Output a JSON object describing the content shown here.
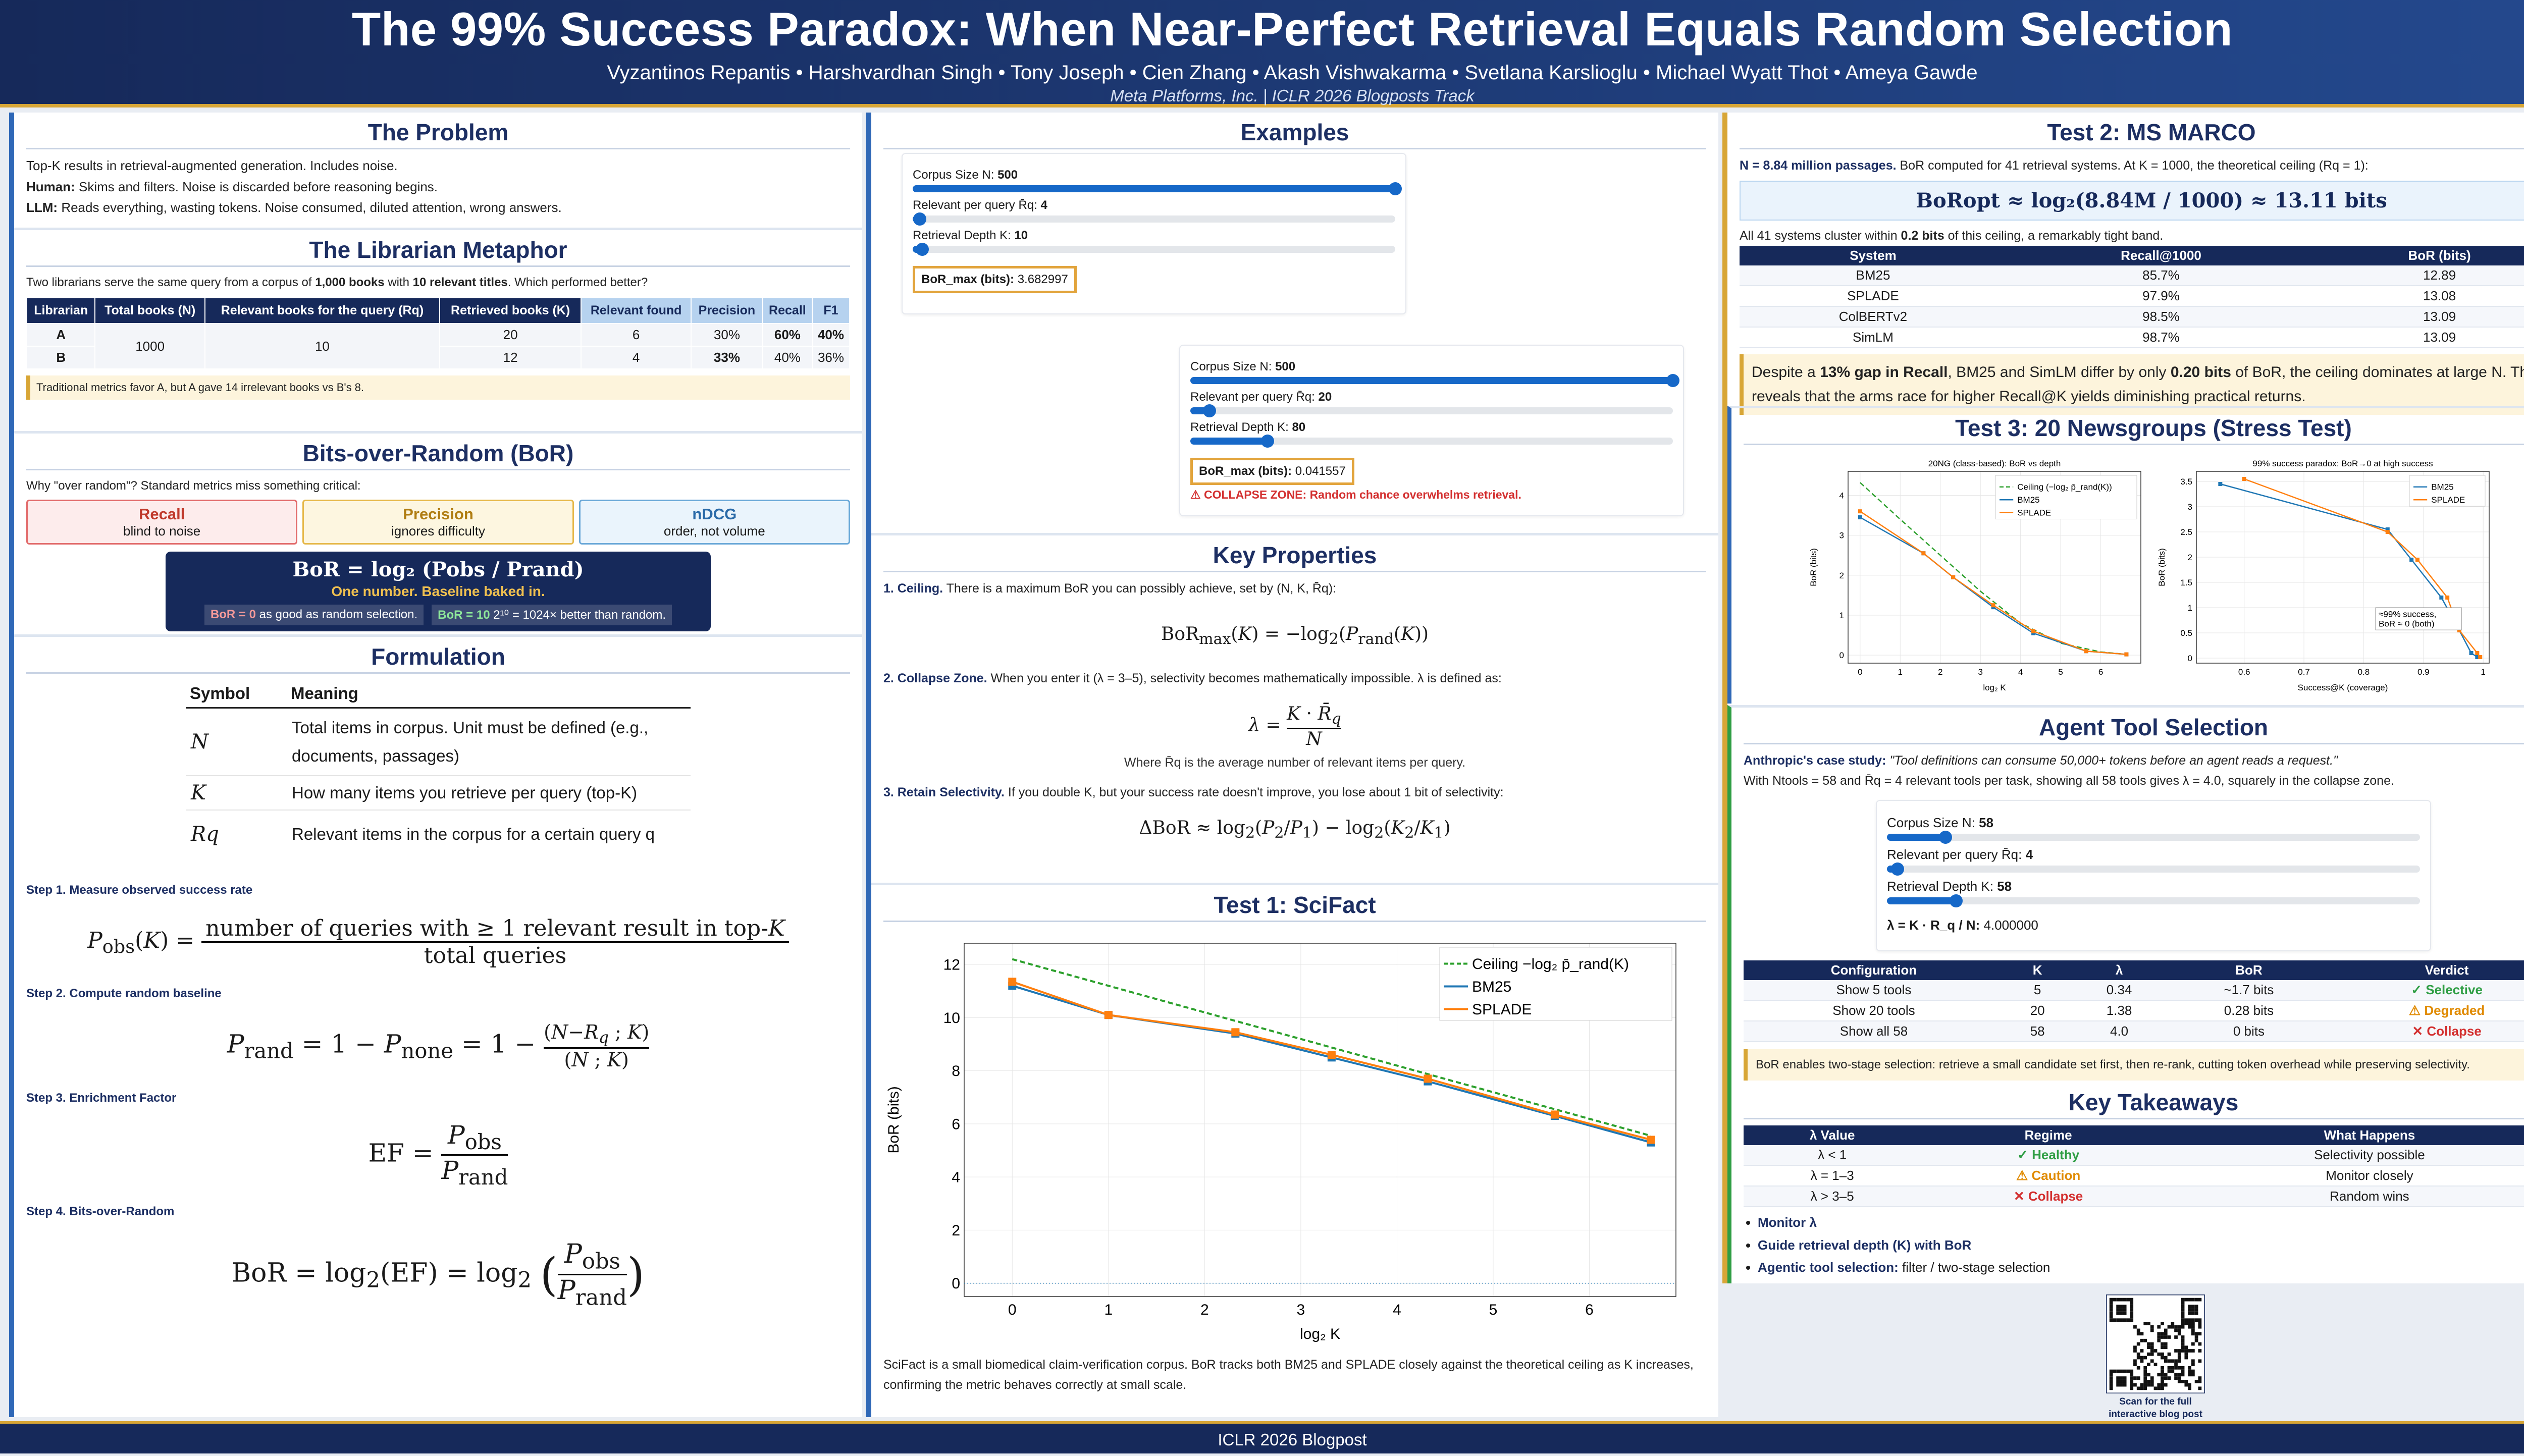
{
  "header": {
    "title": "The 99% Success Paradox: When Near-Perfect Retrieval Equals Random Selection",
    "authors": "Vyzantinos Repantis  •  Harshvardhan Singh  •  Tony Joseph  •  Cien Zhang  •  Akash Vishwakarma  •  Svetlana Karslioglu  •  Michael Wyatt Thot  •  Ameya Gawde",
    "affiliation": "Meta Platforms, Inc.  |  ICLR 2026 Blogposts Track"
  },
  "footer": "ICLR 2026 Blogpost",
  "problem": {
    "title": "The Problem",
    "l1": "Top-K results in retrieval-augmented generation. Includes noise.",
    "l2k": "Human:",
    "l2": " Skims and filters. Noise is discarded before reasoning begins.",
    "l3k": "LLM:",
    "l3": " Reads everything, wasting tokens. Noise consumed, diluted attention, wrong answers."
  },
  "librarian": {
    "title": "The Librarian Metaphor",
    "intro1": "Two librarians serve the same query from a corpus of ",
    "intro_b1": "1,000 books",
    "intro2": " with ",
    "intro_b2": "10 relevant titles",
    "intro3": ". Which performed better?",
    "headers": [
      "Librarian",
      "Total books (N)",
      "Relevant books for the query (Rq)",
      "Retrieved books (K)",
      "Relevant found",
      "Precision",
      "Recall",
      "F1"
    ],
    "rows": [
      [
        "A",
        "1000",
        "10",
        "20",
        "6",
        "30%",
        "60%",
        "40%"
      ],
      [
        "B",
        "",
        "",
        "12",
        "4",
        "33%",
        "40%",
        "36%"
      ]
    ],
    "note": "Traditional metrics favor A, but A gave 14 irrelevant books vs B's 8."
  },
  "bor": {
    "title": "Bits-over-Random (BoR)",
    "q": "Why \"over random\"? Standard metrics miss something critical:",
    "chips": [
      {
        "t": "Recall",
        "s": "blind to noise"
      },
      {
        "t": "Precision",
        "s": "ignores difficulty"
      },
      {
        "t": "nDCG",
        "s": "order, not volume"
      }
    ],
    "formula": "BoR = log₂ (Pobs / Prand)",
    "tag": "One number. Baseline baked in.",
    "c1k": "BoR = 0",
    "c1": " as good as random selection.",
    "c2k": "BoR = 10",
    "c2": " 2¹⁰ = 1024× better than random."
  },
  "formulation": {
    "title": "Formulation",
    "sym_h": "Symbol",
    "mean_h": "Meaning",
    "rows": [
      [
        "N",
        "Total items in corpus. Unit must be defined (e.g., documents, passages)"
      ],
      [
        "K",
        "How many items you retrieve per query (top-K)"
      ],
      [
        "Rq",
        "Relevant items in the corpus for a certain query q"
      ]
    ],
    "s1": "Step 1. Measure observed success rate",
    "s2": "Step 2. Compute random baseline",
    "s3": "Step 3. Enrichment Factor",
    "s4": "Step 4. Bits-over-Random"
  },
  "examples": {
    "title": "Examples",
    "w1": {
      "n_label": "Corpus Size N:",
      "n": "500",
      "r_label": "Relevant per query R̄q:",
      "r": "4",
      "k_label": "Retrieval Depth K:",
      "k": "10",
      "res_label": "BoR_max (bits):",
      "res": "3.682997"
    },
    "w2": {
      "n_label": "Corpus Size N:",
      "n": "500",
      "r_label": "Relevant per query R̄q:",
      "r": "20",
      "k_label": "Retrieval Depth K:",
      "k": "80",
      "res_label": "BoR_max (bits):",
      "res": "0.041557",
      "warn": "⚠ COLLAPSE ZONE: Random chance overwhelms retrieval."
    }
  },
  "keyprops": {
    "title": "Key Properties",
    "p1k": "1. Ceiling.",
    "p1": " There is a maximum BoR you can possibly achieve, set by (N, K, R̄q):",
    "p2k": "2. Collapse Zone.",
    "p2": " When you enter it (λ = 3–5), selectivity becomes mathematically impossible. λ is defined as:",
    "p2w": "Where R̄q is the average number of relevant items per query.",
    "p3k": "3. Retain Selectivity.",
    "p3": " If you double K, but your success rate doesn't improve, you lose about 1 bit of selectivity:"
  },
  "scifact": {
    "title": "Test 1: SciFact",
    "caption": "SciFact is a small biomedical claim-verification corpus. BoR tracks both BM25 and SPLADE closely against the theoretical ceiling as K increases, confirming the metric behaves correctly at small scale."
  },
  "chart_data": [
    {
      "type": "line",
      "xlabel": "log₂ K",
      "ylabel": "BoR (bits)",
      "xlim": [
        -0.5,
        6.9
      ],
      "ylim": [
        -0.5,
        12.8
      ],
      "xticks": [
        0,
        1,
        2,
        3,
        4,
        5,
        6
      ],
      "yticks": [
        0,
        2,
        4,
        6,
        8,
        10,
        12
      ],
      "grid": true,
      "legend": "top-right",
      "series": [
        {
          "name": "Ceiling −log₂ p̄_rand(K)",
          "color": "#2ca02c",
          "dash": true,
          "x": [
            0,
            6.64
          ],
          "y": [
            12.2,
            5.55
          ]
        },
        {
          "name": "BM25",
          "color": "#1f77b4",
          "x": [
            0,
            1,
            2.32,
            3.32,
            4.32,
            5.64,
            6.64
          ],
          "y": [
            11.2,
            10.1,
            9.4,
            8.5,
            7.6,
            6.3,
            5.3
          ]
        },
        {
          "name": "SPLADE",
          "color": "#ff7f0e",
          "x": [
            0,
            1,
            2.32,
            3.32,
            4.32,
            5.64,
            6.64
          ],
          "y": [
            11.35,
            10.1,
            9.45,
            8.6,
            7.7,
            6.35,
            5.4
          ]
        }
      ]
    },
    {
      "type": "line",
      "title": "20NG (class-based): BoR vs depth",
      "xlabel": "log₂ K",
      "ylabel": "BoR (bits)",
      "xlim": [
        -0.3,
        7
      ],
      "ylim": [
        -0.2,
        4.6
      ],
      "xticks": [
        0,
        1,
        2,
        3,
        4,
        5,
        6
      ],
      "yticks": [
        0,
        1,
        2,
        3,
        4
      ],
      "grid": true,
      "legend": "top-right",
      "series": [
        {
          "name": "Ceiling (−log₂ p̄_rand(K))",
          "color": "#2ca02c",
          "dash": true,
          "x": [
            0,
            1,
            2,
            3,
            4,
            5,
            6,
            6.64
          ],
          "y": [
            4.32,
            3.4,
            2.5,
            1.6,
            0.8,
            0.3,
            0.08,
            0.02
          ]
        },
        {
          "name": "BM25",
          "color": "#1f77b4",
          "x": [
            0,
            1.58,
            2.32,
            3.32,
            4.32,
            5.64,
            6.64
          ],
          "y": [
            3.45,
            2.55,
            1.95,
            1.2,
            0.55,
            0.1,
            0.02
          ]
        },
        {
          "name": "SPLADE",
          "color": "#ff7f0e",
          "x": [
            0,
            1.58,
            2.32,
            3.32,
            4.32,
            5.64,
            6.64
          ],
          "y": [
            3.6,
            2.55,
            1.95,
            1.25,
            0.6,
            0.1,
            0.02
          ]
        }
      ]
    },
    {
      "type": "line",
      "title": "99% success paradox: BoR→0 at high success",
      "xlabel": "Success@K (coverage)",
      "ylabel": "BoR (bits)",
      "xlim": [
        0.52,
        1.01
      ],
      "ylim": [
        -0.1,
        3.7
      ],
      "xticks": [
        0.6,
        0.7,
        0.8,
        0.9,
        1.0
      ],
      "yticks": [
        0,
        0.5,
        1.0,
        1.5,
        2.0,
        2.5,
        3.0,
        3.5
      ],
      "grid": true,
      "legend": "top-right",
      "annotation": "≈99% success, BoR ≈ 0 (both)",
      "series": [
        {
          "name": "BM25",
          "color": "#1f77b4",
          "x": [
            0.56,
            0.84,
            0.88,
            0.93,
            0.96,
            0.98,
            0.99
          ],
          "y": [
            3.45,
            2.55,
            1.95,
            1.2,
            0.55,
            0.1,
            0.02
          ]
        },
        {
          "name": "SPLADE",
          "color": "#ff7f0e",
          "x": [
            0.6,
            0.84,
            0.89,
            0.94,
            0.96,
            0.99,
            0.995
          ],
          "y": [
            3.55,
            2.5,
            1.95,
            1.2,
            0.55,
            0.1,
            0.02
          ]
        }
      ]
    }
  ],
  "msmarco": {
    "title": "Test 2: MS MARCO",
    "i1k": "N = 8.84 million passages.",
    "i1": " BoR computed for 41 retrieval systems. At K = 1000, the theoretical ceiling (Rq = 1):",
    "formula": "BoRopt ≈ log₂(8.84M / 1000) ≈ 13.11 bits",
    "i2a": "All 41 systems cluster within ",
    "i2b": "0.2 bits",
    "i2c": " of this ceiling, a remarkably tight band.",
    "headers": [
      "System",
      "Recall@1000",
      "BoR (bits)"
    ],
    "rows": [
      [
        "BM25",
        "85.7%",
        "12.89"
      ],
      [
        "SPLADE",
        "97.9%",
        "13.08"
      ],
      [
        "ColBERTv2",
        "98.5%",
        "13.09"
      ],
      [
        "SimLM",
        "98.7%",
        "13.09"
      ]
    ],
    "note_a": "Despite a ",
    "note_b": "13% gap in Recall",
    "note_c": ", BM25 and SimLM differ by only ",
    "note_d": "0.20 bits",
    "note_e": " of BoR, the ceiling dominates at large N. This reveals that the arms race for higher Recall@K yields diminishing practical returns."
  },
  "ng": {
    "title": "Test 3: 20 Newsgroups (Stress Test)"
  },
  "agent": {
    "title": "Agent Tool Selection",
    "case_k": "Anthropic's case study:",
    "case": " \"Tool definitions can consume 50,000+ tokens before an agent reads a request.\"",
    "line": "With Ntools = 58 and R̄q = 4 relevant tools per task, showing all 58 tools gives λ = 4.0, squarely in the collapse zone.",
    "w": {
      "n_label": "Corpus Size N:",
      "n": "58",
      "r_label": "Relevant per query R̄q:",
      "r": "4",
      "k_label": "Retrieval Depth K:",
      "k": "58",
      "res_label": "λ = K · R_q / N:",
      "res": "4.000000"
    },
    "headers": [
      "Configuration",
      "K",
      "λ",
      "BoR",
      "Verdict"
    ],
    "rows": [
      [
        "Show 5 tools",
        "5",
        "0.34",
        "~1.7 bits",
        "✓ Selective"
      ],
      [
        "Show 20 tools",
        "20",
        "1.38",
        "0.28 bits",
        "⚠ Degraded"
      ],
      [
        "Show all 58",
        "58",
        "4.0",
        "0 bits",
        "✕ Collapse"
      ]
    ],
    "note": "BoR enables two-stage selection: retrieve a small candidate set first, then re-rank, cutting token overhead while preserving selectivity."
  },
  "takeaways": {
    "title": "Key Takeaways",
    "headers": [
      "λ Value",
      "Regime",
      "What Happens"
    ],
    "rows": [
      [
        "λ < 1",
        "✓ Healthy",
        "Selectivity possible"
      ],
      [
        "λ = 1–3",
        "⚠ Caution",
        "Monitor closely"
      ],
      [
        "λ > 3–5",
        "✕ Collapse",
        "Random wins"
      ]
    ],
    "b1": "Monitor λ",
    "b2": "Guide retrieval depth (K) with BoR",
    "b3k": "Agentic tool selection:",
    "b3": " filter / two-stage selection"
  },
  "qr": {
    "caption": "Scan for the full interactive blog post"
  }
}
